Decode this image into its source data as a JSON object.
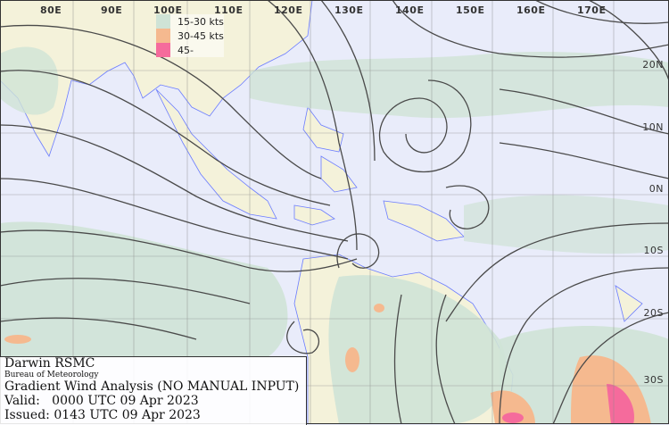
{
  "map": {
    "longitude_labels": [
      "80E",
      "90E",
      "100E",
      "110E",
      "120E",
      "130E",
      "140E",
      "150E",
      "160E",
      "170E"
    ],
    "latitude_labels": [
      "20N",
      "10N",
      "0N",
      "10S",
      "20S",
      "30S"
    ],
    "colors": {
      "ocean": "#e9ecfa",
      "land": "#f4f2da",
      "coastline": "#6b7cff",
      "streamline": "#4a4a4a",
      "grid": "#888888"
    }
  },
  "legend": {
    "items": [
      {
        "label": "15-30 kts",
        "color": "#cfe3d6"
      },
      {
        "label": "30-45 kts",
        "color": "#f5b98f"
      },
      {
        "label": "45-",
        "color": "#f56b9c"
      }
    ]
  },
  "title_block": {
    "center": "Darwin RSMC",
    "agency": "Bureau of Meteorology",
    "product": "Gradient Wind Analysis (NO MANUAL INPUT)",
    "valid": "Valid:   0000 UTC 09 Apr 2023",
    "issued": "Issued: 0143 UTC 09 Apr 2023"
  }
}
